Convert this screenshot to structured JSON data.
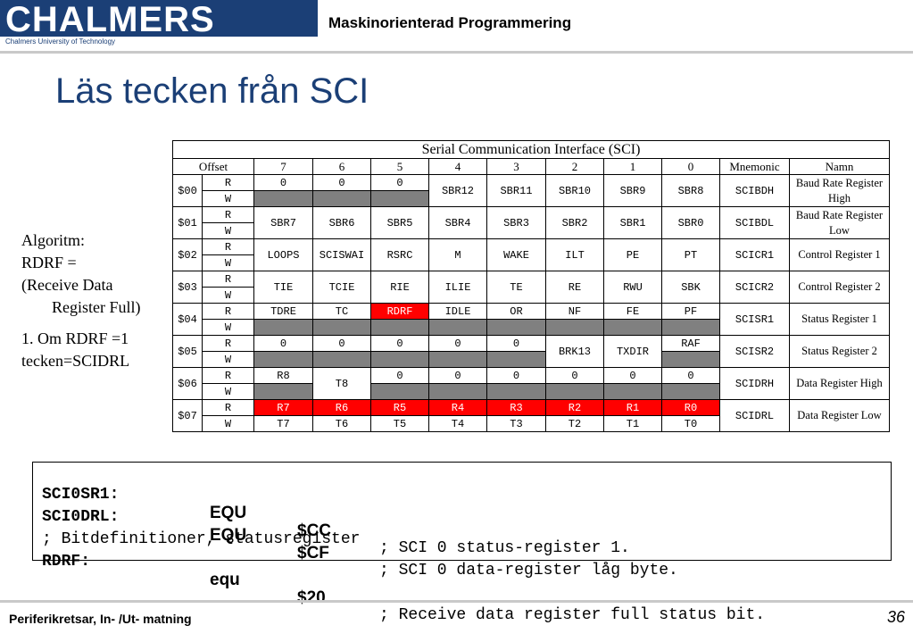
{
  "header": {
    "logo_text": "CHALMERS",
    "logo_subtext": "Chalmers University of Technology",
    "course_title": "Maskinorienterad Programmering",
    "brand_color": "#1b3f76"
  },
  "slide_title": "Läs tecken från SCI",
  "algorithm": {
    "lines": [
      "Algoritm:",
      "RDRF =",
      "(Receive Data",
      "Register Full)"
    ],
    "steps": [
      "1. Om RDRF =1",
      "tecken=SCIDRL"
    ]
  },
  "register_table": {
    "caption": "Serial Communication Interface (SCI)",
    "headers": [
      "Offset",
      "7",
      "6",
      "5",
      "4",
      "3",
      "2",
      "1",
      "0",
      "Mnemonic",
      "Namn"
    ],
    "rows": {
      "r00": {
        "offset": "$00",
        "rw": [
          "R",
          "W"
        ],
        "r": [
          "0",
          "0",
          "0"
        ],
        "rw_bits": [
          "SBR12",
          "SBR11",
          "SBR10",
          "SBR9",
          "SBR8"
        ],
        "mnemonic": "SCIBDH",
        "name": "Baud Rate Register High"
      },
      "r01": {
        "offset": "$01",
        "rw": [
          "R",
          "W"
        ],
        "bits": [
          "SBR7",
          "SBR6",
          "SBR5",
          "SBR4",
          "SBR3",
          "SBR2",
          "SBR1",
          "SBR0"
        ],
        "mnemonic": "SCIBDL",
        "name": "Baud Rate Register Low"
      },
      "r02": {
        "offset": "$02",
        "rw": [
          "R",
          "W"
        ],
        "bits": [
          "LOOPS",
          "SCISWAI",
          "RSRC",
          "M",
          "WAKE",
          "ILT",
          "PE",
          "PT"
        ],
        "mnemonic": "SCICR1",
        "name": "Control Register 1"
      },
      "r03": {
        "offset": "$03",
        "rw": [
          "R",
          "W"
        ],
        "bits": [
          "TIE",
          "TCIE",
          "RIE",
          "ILIE",
          "TE",
          "RE",
          "RWU",
          "SBK"
        ],
        "mnemonic": "SCICR2",
        "name": "Control Register 2"
      },
      "r04": {
        "offset": "$04",
        "rw": [
          "R",
          "W"
        ],
        "r": [
          "TDRE",
          "TC",
          "RDRF",
          "IDLE",
          "OR",
          "NF",
          "FE",
          "PF"
        ],
        "mnemonic": "SCISR1",
        "name": "Status Register 1"
      },
      "r05": {
        "offset": "$05",
        "rw": [
          "R",
          "W"
        ],
        "r": [
          "0",
          "0",
          "0",
          "0",
          "0",
          "RAF"
        ],
        "rw_bits": [
          "BRK13",
          "TXDIR"
        ],
        "mnemonic": "SCISR2",
        "name": "Status Register 2"
      },
      "r06": {
        "offset": "$06",
        "rw": [
          "R",
          "W"
        ],
        "r": [
          "R8",
          "0",
          "0",
          "0",
          "0",
          "0",
          "0"
        ],
        "rw_bits": [
          "T8"
        ],
        "mnemonic": "SCIDRH",
        "name": "Data Register High"
      },
      "r07": {
        "offset": "$07",
        "rw": [
          "R",
          "W"
        ],
        "r": [
          "R7",
          "R6",
          "R5",
          "R4",
          "R3",
          "R2",
          "R1",
          "R0"
        ],
        "w": [
          "T7",
          "T6",
          "T5",
          "T4",
          "T3",
          "T2",
          "T1",
          "T0"
        ],
        "mnemonic": "SCIDRL",
        "name": "Data Register Low"
      }
    },
    "highlight_color": "#ff0000",
    "unused_color": "#808080"
  },
  "code": {
    "line1": {
      "label": "SCI0SR1:",
      "op": "EQU",
      "arg": "$CC",
      "comment": "; SCI 0 status-register 1."
    },
    "line2": {
      "label": "SCI0DRL:",
      "op": "EQU",
      "arg": "$CF",
      "comment": "; SCI 0 data-register låg byte."
    },
    "line3": {
      "text": "; Bitdefinitioner, statusregister"
    },
    "line4": {
      "label": "RDRF:",
      "op": "equ",
      "arg": "$20",
      "comment": "; Receive data register full status bit."
    }
  },
  "footer": {
    "text": "Periferikretsar, In- /Ut- matning",
    "page_number": "36"
  }
}
